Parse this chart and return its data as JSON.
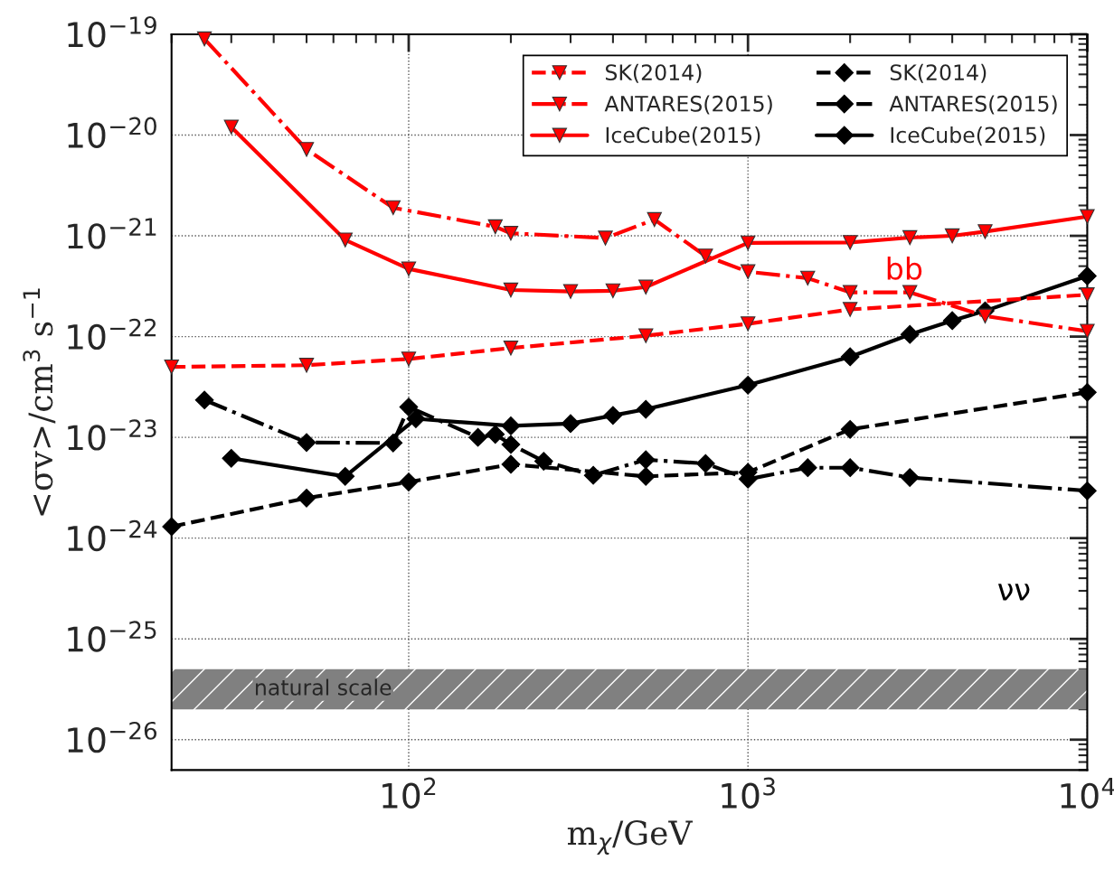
{
  "chart_data": {
    "type": "line",
    "xlabel": "m$_{χ}$/GeV",
    "ylabel": "<σv>/cm$^{3}$ s$^{−1}$",
    "log": "xy",
    "grid": true,
    "legend": "top right",
    "xlim": [
      20,
      10000
    ],
    "xticks": [
      {
        "value": 100,
        "label": "10$^{2}$"
      },
      {
        "value": 1000,
        "label": "10$^{3}$"
      },
      {
        "value": 10000,
        "label": "10$^{4}$"
      }
    ],
    "ylim": [
      5e-27,
      1e-19
    ],
    "yticks": [
      {
        "value": 1e-26,
        "label": "10$^{−26}$"
      },
      {
        "value": 1e-25,
        "label": "10$^{−25}$"
      },
      {
        "value": 1e-24,
        "label": "10$^{−24}$"
      },
      {
        "value": 1e-23,
        "label": "10$^{−23}$"
      },
      {
        "value": 1e-22,
        "label": "10$^{−22}$"
      },
      {
        "value": 1e-21,
        "label": "10$^{−21}$"
      },
      {
        "value": 1e-20,
        "label": "10$^{−20}$"
      },
      {
        "value": 1e-19,
        "label": "10$^{−19}$"
      }
    ],
    "series": [
      {
        "name": "SK(2014)",
        "color": "#ff0000",
        "marker": "triangle",
        "line_style": "dashed",
        "x": [
          20,
          50,
          100,
          200,
          500,
          1000,
          2000,
          10000
        ],
        "values": [
          5e-23,
          5.2e-23,
          6e-23,
          7.7e-23,
          1.02e-22,
          1.34e-22,
          1.86e-22,
          2.6e-22
        ]
      },
      {
        "name": "ANTARES(2015)",
        "color": "#ff0000",
        "marker": "triangle",
        "line_style": "dashdot",
        "x": [
          25,
          50,
          90,
          180,
          200,
          380,
          530,
          750,
          1000,
          1500,
          2000,
          3000,
          5000,
          10000
        ],
        "values": [
          9e-20,
          7.2e-21,
          1.9e-21,
          1.23e-21,
          1.06e-21,
          9.5e-22,
          1.45e-21,
          6.3e-22,
          4.4e-22,
          3.8e-22,
          2.75e-22,
          2.75e-22,
          1.6e-22,
          1.13e-22
        ]
      },
      {
        "name": "IceCube(2015)",
        "color": "#ff0000",
        "marker": "triangle",
        "line_style": "solid",
        "x": [
          30,
          65,
          100,
          200,
          300,
          400,
          500,
          1000,
          2000,
          3000,
          4000,
          5000,
          10000
        ],
        "values": [
          1.2e-20,
          9.1e-22,
          4.7e-22,
          2.9e-22,
          2.8e-22,
          2.85e-22,
          3.1e-22,
          8.5e-22,
          8.6e-22,
          9.6e-22,
          1e-21,
          1.1e-21,
          1.55e-21
        ]
      },
      {
        "name": "SK(2014)",
        "color": "#000000",
        "marker": "diamond",
        "line_style": "dashed",
        "x": [
          20,
          50,
          100,
          200,
          500,
          1000,
          2000,
          10000
        ],
        "values": [
          1.3e-24,
          2.5e-24,
          3.6e-24,
          5.4e-24,
          4.1e-24,
          4.5e-24,
          1.2e-23,
          2.8e-23
        ]
      },
      {
        "name": "ANTARES(2015)",
        "color": "#000000",
        "marker": "diamond",
        "line_style": "dashdot",
        "x": [
          25,
          50,
          90,
          100,
          160,
          180,
          200,
          250,
          350,
          500,
          750,
          1000,
          1500,
          2000,
          3000,
          10000
        ],
        "values": [
          2.35e-23,
          8.9e-24,
          8.8e-24,
          2e-23,
          1e-23,
          1.07e-23,
          8.5e-24,
          5.8e-24,
          4.2e-24,
          6e-24,
          5.5e-24,
          3.85e-24,
          5e-24,
          5e-24,
          4e-24,
          2.95e-24
        ]
      },
      {
        "name": "IceCube(2015)",
        "color": "#000000",
        "marker": "diamond",
        "line_style": "solid",
        "x": [
          30,
          65,
          105,
          200,
          300,
          400,
          500,
          1000,
          2000,
          3000,
          4000,
          5000,
          10000
        ],
        "values": [
          6.2e-24,
          4.1e-24,
          1.53e-23,
          1.3e-23,
          1.37e-23,
          1.65e-23,
          1.9e-23,
          3.3e-23,
          6.3e-23,
          1.05e-22,
          1.44e-22,
          1.8e-22,
          4e-22
        ]
      }
    ],
    "bands": [
      {
        "axis": "y",
        "from": 2e-26,
        "to": 5e-26,
        "label": "natural scale",
        "color": "#808080"
      }
    ],
    "annotations": [
      "bb",
      "νν"
    ]
  }
}
